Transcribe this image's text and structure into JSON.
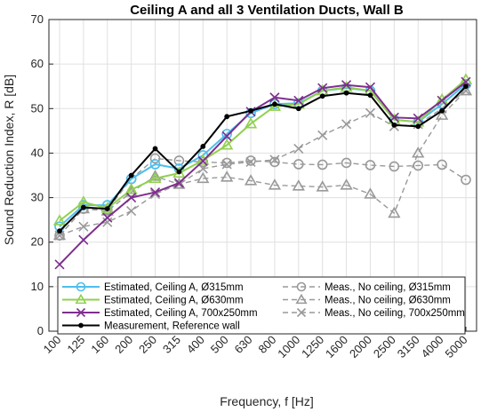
{
  "chart_data": {
    "type": "line",
    "title": "Ceiling A and all 3 Ventilation Ducts, Wall B",
    "xlabel": "Frequency, f [Hz]",
    "ylabel": "Sound Reduction Index, R [dB]",
    "categories": [
      "100",
      "125",
      "160",
      "200",
      "250",
      "315",
      "400",
      "500",
      "630",
      "800",
      "1000",
      "1250",
      "1600",
      "2000",
      "2500",
      "3150",
      "4000",
      "5000"
    ],
    "ylim": [
      0,
      70
    ],
    "yticks": [
      0,
      10,
      20,
      30,
      40,
      50,
      60,
      70
    ],
    "grid": true,
    "legend_position": "bottom",
    "series": [
      {
        "name": "Estimated, Ceiling A, Ø315mm",
        "color": "#4DBEEE",
        "style": "solid",
        "marker": "circle",
        "values": [
          23.5,
          28.3,
          28.3,
          34.2,
          37.5,
          36.5,
          39.5,
          44.3,
          49.0,
          51.0,
          51.2,
          54.0,
          54.6,
          54.0,
          47.5,
          47.0,
          51.0,
          55.5
        ]
      },
      {
        "name": "Estimated, Ceiling A, Ø630mm",
        "color": "#92D050",
        "style": "solid",
        "marker": "triangle",
        "values": [
          24.8,
          29.0,
          27.6,
          31.8,
          34.3,
          35.5,
          38.4,
          41.8,
          46.6,
          50.5,
          51.0,
          54.0,
          54.8,
          54.0,
          47.5,
          47.0,
          52.0,
          56.5
        ]
      },
      {
        "name": "Estimated, Ceiling A, 700x250mm",
        "color": "#7E2F8E",
        "style": "solid",
        "marker": "x",
        "values": [
          15.0,
          20.5,
          25.5,
          30.0,
          31.2,
          33.3,
          38.2,
          43.8,
          49.3,
          52.5,
          51.8,
          54.6,
          55.3,
          54.8,
          48.0,
          47.8,
          51.8,
          56.0
        ]
      },
      {
        "name": "Measurement, Reference wall",
        "color": "#000000",
        "style": "solid",
        "marker": "dot",
        "values": [
          22.5,
          27.8,
          27.5,
          35.0,
          41.0,
          35.8,
          41.5,
          48.2,
          49.5,
          51.0,
          50.0,
          52.8,
          53.5,
          53.0,
          46.3,
          46.0,
          49.5,
          55.0
        ]
      },
      {
        "name": "Meas., No ceiling, Ø315mm",
        "color": "#999999",
        "style": "dashed",
        "marker": "circle",
        "values": [
          21.5,
          27.5,
          27.3,
          34.2,
          38.8,
          38.3,
          38.0,
          37.8,
          38.3,
          38.0,
          37.5,
          37.4,
          37.8,
          37.3,
          37.0,
          37.2,
          37.4,
          34.0
        ]
      },
      {
        "name": "Meas., No ceiling, Ø630mm",
        "color": "#999999",
        "style": "dashed",
        "marker": "triangle",
        "values": [
          21.5,
          27.5,
          27.0,
          31.2,
          34.8,
          33.0,
          34.3,
          34.6,
          33.8,
          32.8,
          32.6,
          32.4,
          32.8,
          30.8,
          26.5,
          40.0,
          48.5,
          54.0
        ]
      },
      {
        "name": "Meas., No ceiling, 700x250mm",
        "color": "#999999",
        "style": "dashed",
        "marker": "x",
        "values": [
          21.5,
          23.5,
          24.5,
          27.0,
          30.8,
          33.0,
          36.5,
          37.5,
          38.0,
          38.5,
          41.0,
          44.0,
          46.5,
          49.0,
          46.0,
          46.5,
          50.0,
          54.0
        ]
      }
    ]
  }
}
